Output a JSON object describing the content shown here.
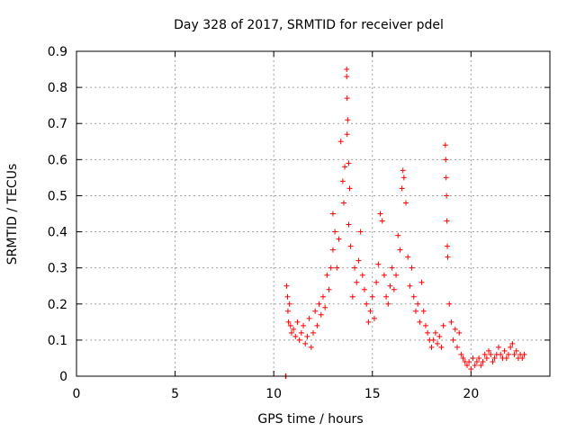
{
  "chart_data": {
    "type": "scatter",
    "title": "Day 328 of 2017, SRMTID for receiver pdel",
    "xlabel": "GPS time / hours",
    "ylabel": "SRMTID / TECUs",
    "xlim": [
      0,
      24
    ],
    "ylim": [
      0,
      0.9
    ],
    "xticks": [
      0,
      5,
      10,
      15,
      20
    ],
    "yticks": [
      0,
      0.1,
      0.2,
      0.3,
      0.4,
      0.5,
      0.6,
      0.7,
      0.8,
      0.9
    ],
    "xtick_labels": [
      "0",
      "5",
      "10",
      "15",
      "20"
    ],
    "ytick_labels": [
      "0",
      "0.1",
      "0.2",
      "0.3",
      "0.4",
      "0.5",
      "0.6",
      "0.7",
      "0.8",
      "0.9"
    ],
    "grid": true,
    "marker": "+",
    "color": "#ff0000",
    "series": [
      {
        "name": "SRMTID",
        "points": [
          [
            10.6,
            0.0
          ],
          [
            10.62,
            0.0
          ],
          [
            10.65,
            0.25
          ],
          [
            10.7,
            0.22
          ],
          [
            10.72,
            0.18
          ],
          [
            10.75,
            0.15
          ],
          [
            10.8,
            0.2
          ],
          [
            10.85,
            0.14
          ],
          [
            10.9,
            0.12
          ],
          [
            11.0,
            0.13
          ],
          [
            11.1,
            0.11
          ],
          [
            11.2,
            0.15
          ],
          [
            11.3,
            0.1
          ],
          [
            11.4,
            0.12
          ],
          [
            11.5,
            0.14
          ],
          [
            11.6,
            0.09
          ],
          [
            11.7,
            0.11
          ],
          [
            11.8,
            0.16
          ],
          [
            11.9,
            0.08
          ],
          [
            12.0,
            0.12
          ],
          [
            12.1,
            0.18
          ],
          [
            12.2,
            0.14
          ],
          [
            12.3,
            0.2
          ],
          [
            12.4,
            0.17
          ],
          [
            12.5,
            0.22
          ],
          [
            12.6,
            0.19
          ],
          [
            12.7,
            0.28
          ],
          [
            12.8,
            0.24
          ],
          [
            12.9,
            0.3
          ],
          [
            13.0,
            0.35
          ],
          [
            13.0,
            0.45
          ],
          [
            13.1,
            0.4
          ],
          [
            13.2,
            0.3
          ],
          [
            13.3,
            0.38
          ],
          [
            13.4,
            0.65
          ],
          [
            13.5,
            0.54
          ],
          [
            13.55,
            0.48
          ],
          [
            13.6,
            0.58
          ],
          [
            13.7,
            0.85
          ],
          [
            13.7,
            0.83
          ],
          [
            13.72,
            0.77
          ],
          [
            13.75,
            0.71
          ],
          [
            13.72,
            0.67
          ],
          [
            13.8,
            0.59
          ],
          [
            13.8,
            0.42
          ],
          [
            13.85,
            0.52
          ],
          [
            13.9,
            0.36
          ],
          [
            14.0,
            0.22
          ],
          [
            14.1,
            0.3
          ],
          [
            14.2,
            0.26
          ],
          [
            14.3,
            0.32
          ],
          [
            14.4,
            0.4
          ],
          [
            14.5,
            0.28
          ],
          [
            14.6,
            0.24
          ],
          [
            14.7,
            0.2
          ],
          [
            14.8,
            0.15
          ],
          [
            14.9,
            0.18
          ],
          [
            15.0,
            0.22
          ],
          [
            15.1,
            0.16
          ],
          [
            15.2,
            0.26
          ],
          [
            15.3,
            0.31
          ],
          [
            15.4,
            0.45
          ],
          [
            15.5,
            0.43
          ],
          [
            15.6,
            0.28
          ],
          [
            15.7,
            0.22
          ],
          [
            15.8,
            0.2
          ],
          [
            15.9,
            0.25
          ],
          [
            16.0,
            0.3
          ],
          [
            16.1,
            0.24
          ],
          [
            16.2,
            0.28
          ],
          [
            16.3,
            0.39
          ],
          [
            16.4,
            0.35
          ],
          [
            16.5,
            0.52
          ],
          [
            16.55,
            0.57
          ],
          [
            16.6,
            0.55
          ],
          [
            16.7,
            0.48
          ],
          [
            16.8,
            0.33
          ],
          [
            16.9,
            0.25
          ],
          [
            17.0,
            0.3
          ],
          [
            17.1,
            0.22
          ],
          [
            17.2,
            0.18
          ],
          [
            17.3,
            0.2
          ],
          [
            17.4,
            0.15
          ],
          [
            17.5,
            0.26
          ],
          [
            17.6,
            0.18
          ],
          [
            17.7,
            0.14
          ],
          [
            17.8,
            0.12
          ],
          [
            17.9,
            0.1
          ],
          [
            18.0,
            0.08
          ],
          [
            18.1,
            0.1
          ],
          [
            18.2,
            0.12
          ],
          [
            18.3,
            0.09
          ],
          [
            18.4,
            0.11
          ],
          [
            18.5,
            0.08
          ],
          [
            18.6,
            0.14
          ],
          [
            18.7,
            0.64
          ],
          [
            18.72,
            0.6
          ],
          [
            18.74,
            0.55
          ],
          [
            18.76,
            0.5
          ],
          [
            18.78,
            0.43
          ],
          [
            18.8,
            0.36
          ],
          [
            18.82,
            0.33
          ],
          [
            18.9,
            0.2
          ],
          [
            19.0,
            0.15
          ],
          [
            19.1,
            0.1
          ],
          [
            19.2,
            0.13
          ],
          [
            19.3,
            0.08
          ],
          [
            19.4,
            0.12
          ],
          [
            19.5,
            0.06
          ],
          [
            19.6,
            0.05
          ],
          [
            19.7,
            0.04
          ],
          [
            19.8,
            0.03
          ],
          [
            19.9,
            0.04
          ],
          [
            20.0,
            0.02
          ],
          [
            20.1,
            0.05
          ],
          [
            20.2,
            0.03
          ],
          [
            20.3,
            0.04
          ],
          [
            20.4,
            0.05
          ],
          [
            20.5,
            0.03
          ],
          [
            20.6,
            0.04
          ],
          [
            20.7,
            0.06
          ],
          [
            20.8,
            0.05
          ],
          [
            20.9,
            0.07
          ],
          [
            21.0,
            0.06
          ],
          [
            21.1,
            0.04
          ],
          [
            21.2,
            0.05
          ],
          [
            21.3,
            0.06
          ],
          [
            21.4,
            0.08
          ],
          [
            21.5,
            0.06
          ],
          [
            21.6,
            0.05
          ],
          [
            21.7,
            0.07
          ],
          [
            21.8,
            0.05
          ],
          [
            21.9,
            0.06
          ],
          [
            22.0,
            0.08
          ],
          [
            22.1,
            0.09
          ],
          [
            22.2,
            0.06
          ],
          [
            22.3,
            0.07
          ],
          [
            22.4,
            0.05
          ],
          [
            22.5,
            0.06
          ],
          [
            22.6,
            0.05
          ],
          [
            22.7,
            0.06
          ]
        ]
      }
    ]
  }
}
